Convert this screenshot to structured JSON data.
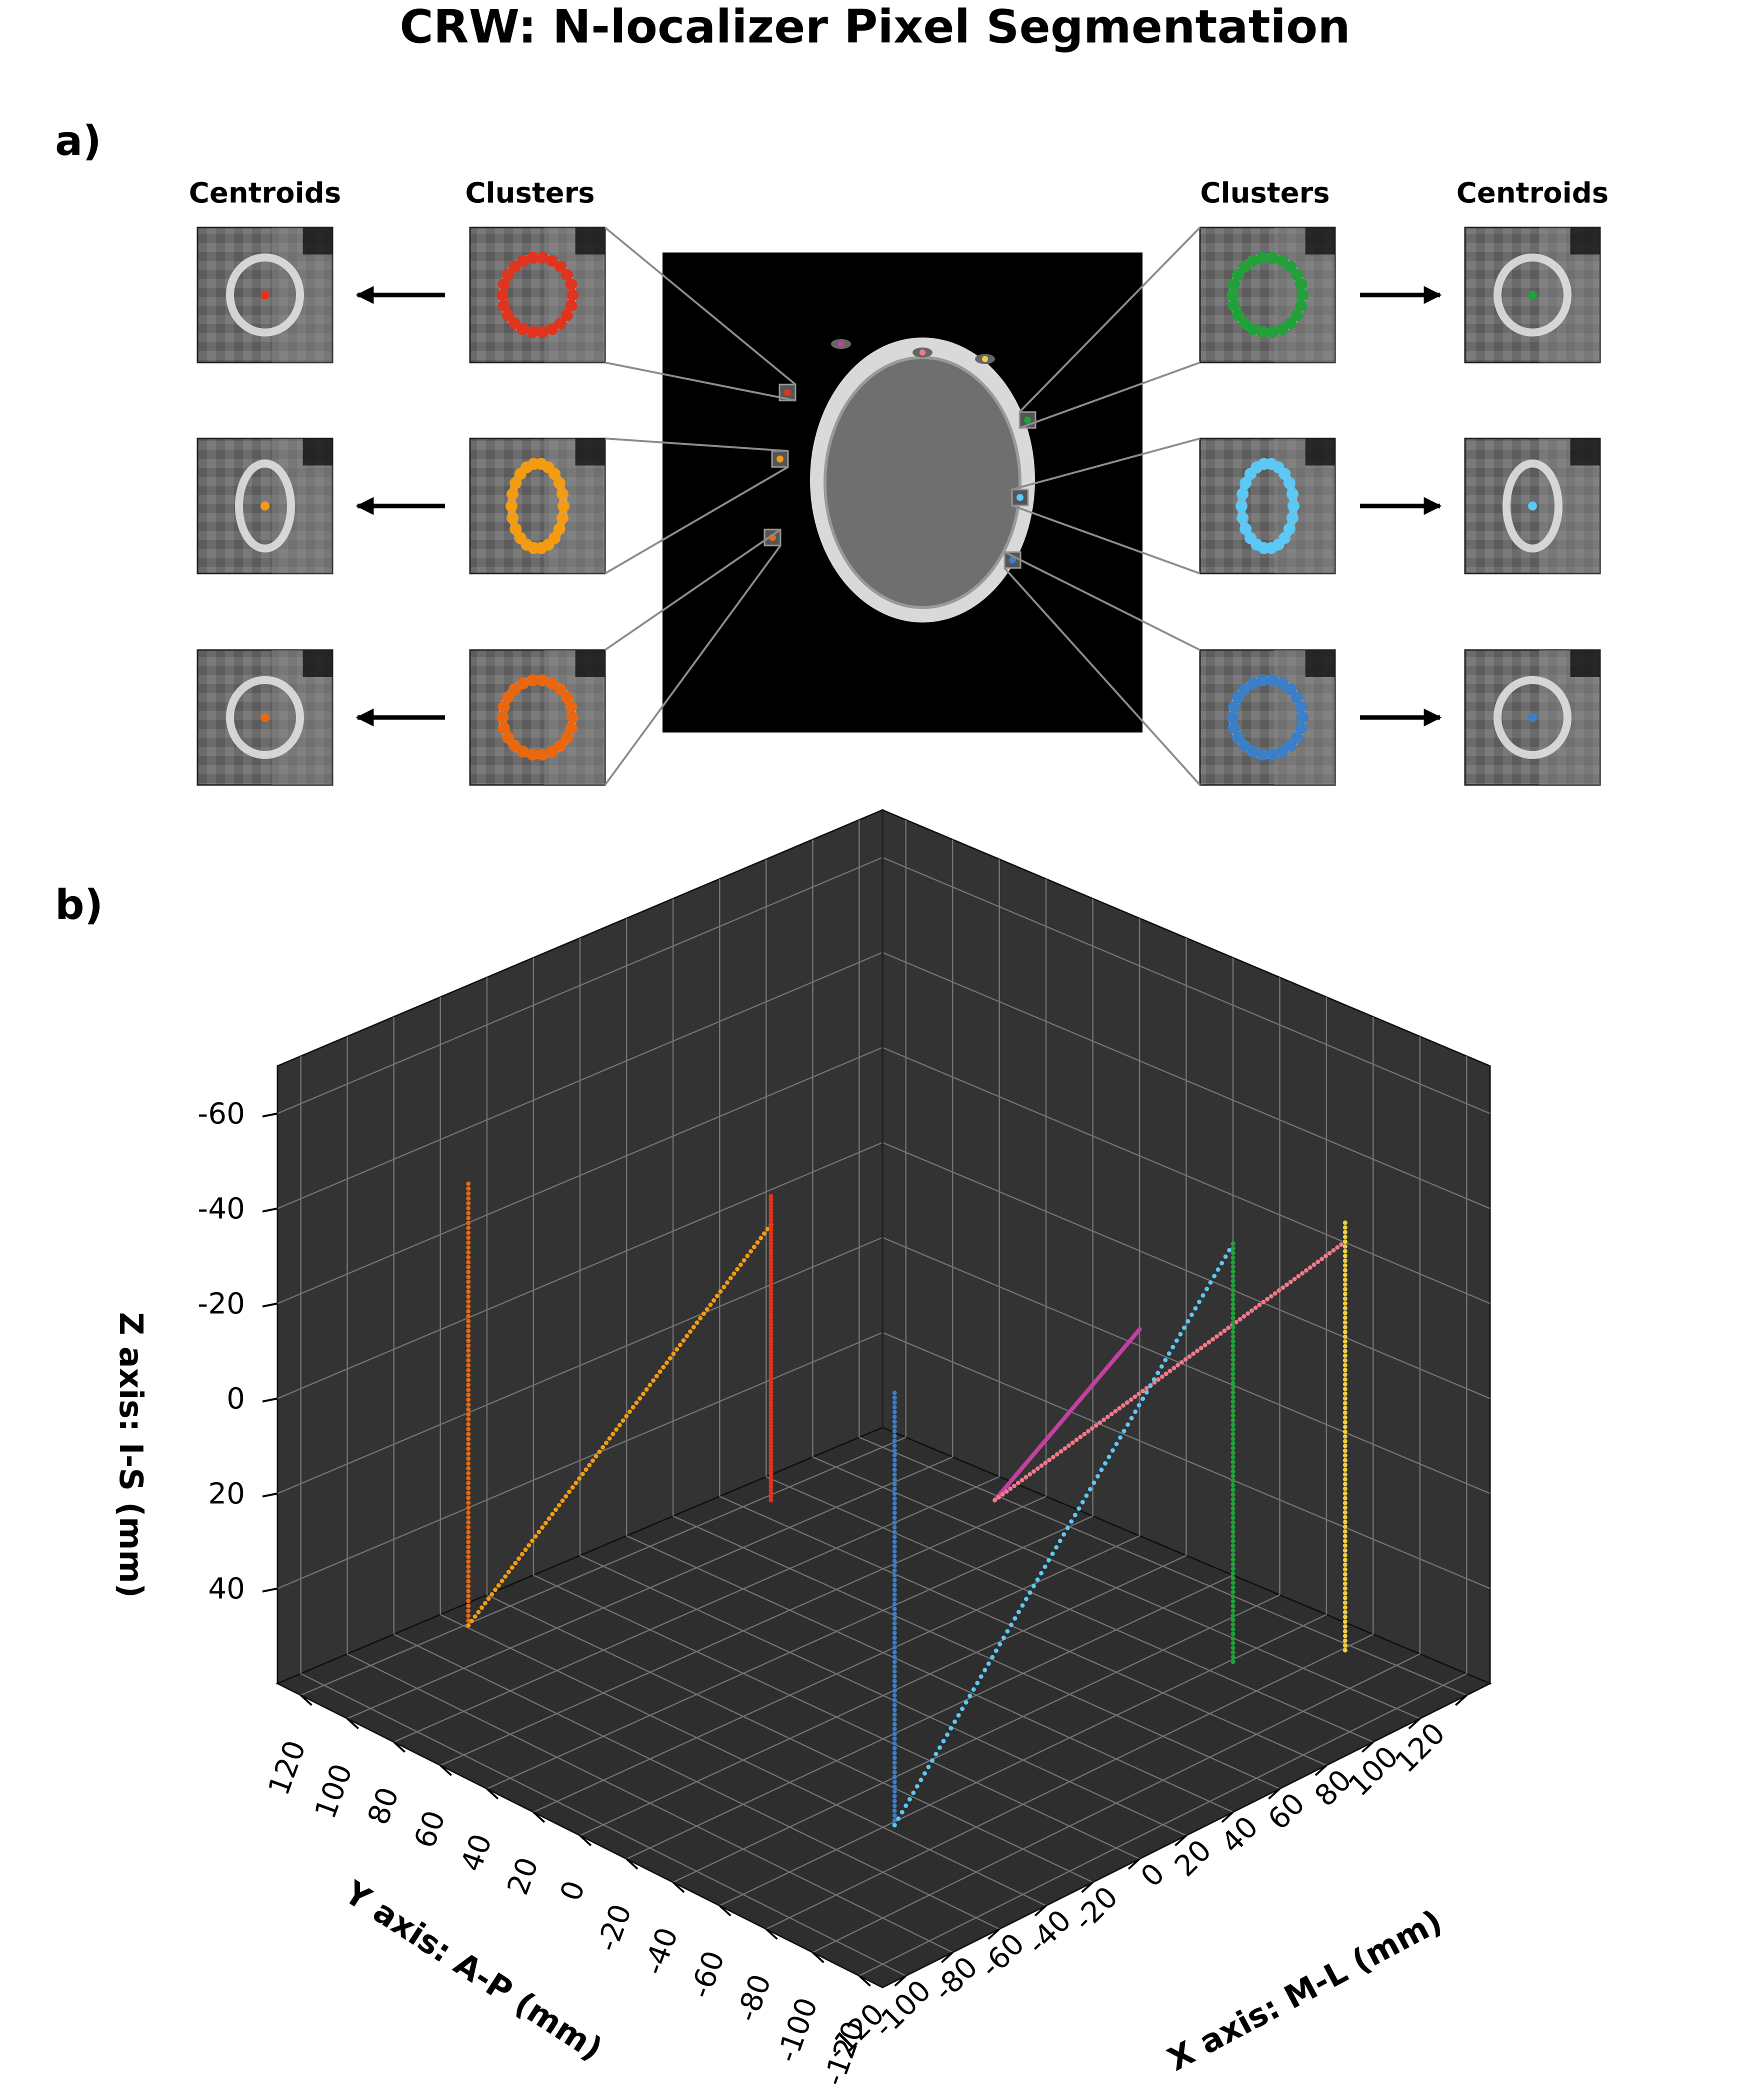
{
  "page": {
    "title": "CRW: N-localizer Pixel Segmentation"
  },
  "panel_a": {
    "label": "a)",
    "headers": {
      "centroids_left": "Centroids",
      "clusters_left": "Clusters",
      "clusters_right": "Clusters",
      "centroids_right": "Centroids"
    },
    "insets": [
      {
        "side": "left",
        "row": 0,
        "color": "#e0341e",
        "ring_shape": "round"
      },
      {
        "side": "left",
        "row": 1,
        "color": "#f39c12",
        "ring_shape": "oval"
      },
      {
        "side": "left",
        "row": 2,
        "color": "#e8670f",
        "ring_shape": "round"
      },
      {
        "side": "right",
        "row": 0,
        "color": "#22a03a",
        "ring_shape": "round"
      },
      {
        "side": "right",
        "row": 1,
        "color": "#5bc8f5",
        "ring_shape": "oval"
      },
      {
        "side": "right",
        "row": 2,
        "color": "#3a7fc7",
        "ring_shape": "round"
      }
    ],
    "top_markers": [
      "#c2409f",
      "#f07a8a",
      "#f0d040"
    ],
    "arrow_glyph": "arrow-icon"
  },
  "panel_b": {
    "label": "b)",
    "chart_data": {
      "type": "scatter",
      "projection": "3d",
      "title": "",
      "xlabel": "X axis: M-L (mm)",
      "ylabel": "Y axis: A-P (mm)",
      "zlabel": "Z axis: I-S (mm)",
      "xlim": [
        -130,
        130
      ],
      "ylim": [
        -130,
        130
      ],
      "zlim": [
        -70,
        60
      ],
      "z_inverted": true,
      "xticks": [
        120,
        100,
        80,
        60,
        40,
        20,
        0,
        -20,
        -40,
        -60,
        -80,
        -100,
        -120
      ],
      "yticks": [
        -120,
        -100,
        -80,
        -60,
        -40,
        -20,
        0,
        20,
        40,
        60,
        80,
        100,
        120
      ],
      "zticks": [
        -60,
        -40,
        -20,
        0,
        20,
        40
      ],
      "xtick_labels": [
        "120",
        "100",
        "80",
        "60",
        "40",
        "20",
        "0",
        "-20",
        "-40",
        "-60",
        "-80",
        "-100",
        "-120"
      ],
      "ytick_labels": [
        "-120",
        "-100",
        "-80",
        "-60",
        "-40",
        "-20",
        "0",
        "20",
        "40",
        "60",
        "80",
        "100",
        "120"
      ],
      "ztick_labels": [
        "-60",
        "-40",
        "-20",
        "0",
        "20",
        "40"
      ],
      "grid": true,
      "pane_color": "#333333",
      "series": [
        {
          "color": "#e8670f",
          "start": [
            108,
            -70,
            55
          ],
          "end": [
            108,
            -70,
            -38
          ]
        },
        {
          "color": "#f39c12",
          "start": [
            108,
            -70,
            55
          ],
          "end": [
            108,
            60,
            -2
          ]
        },
        {
          "color": "#e0341e",
          "start": [
            108,
            60,
            56
          ],
          "end": [
            108,
            60,
            -8
          ]
        },
        {
          "color": "#c2409f",
          "start": [
            60,
            108,
            56
          ],
          "end": [
            -2,
            108,
            7
          ]
        },
        {
          "color": "#f07a8a",
          "start": [
            60,
            108,
            56
          ],
          "end": [
            -90,
            108,
            -30
          ]
        },
        {
          "color": "#f0d040",
          "start": [
            -90,
            108,
            56
          ],
          "end": [
            -90,
            108,
            -34
          ]
        },
        {
          "color": "#3a7fc7",
          "start": [
            -70,
            -65,
            56
          ],
          "end": [
            -70,
            -65,
            -35
          ]
        },
        {
          "color": "#5bc8f5",
          "start": [
            -70,
            -65,
            56
          ],
          "end": [
            -70,
            80,
            -32
          ]
        },
        {
          "color": "#22a03a",
          "start": [
            -70,
            80,
            56
          ],
          "end": [
            -70,
            80,
            -32
          ]
        }
      ]
    }
  }
}
